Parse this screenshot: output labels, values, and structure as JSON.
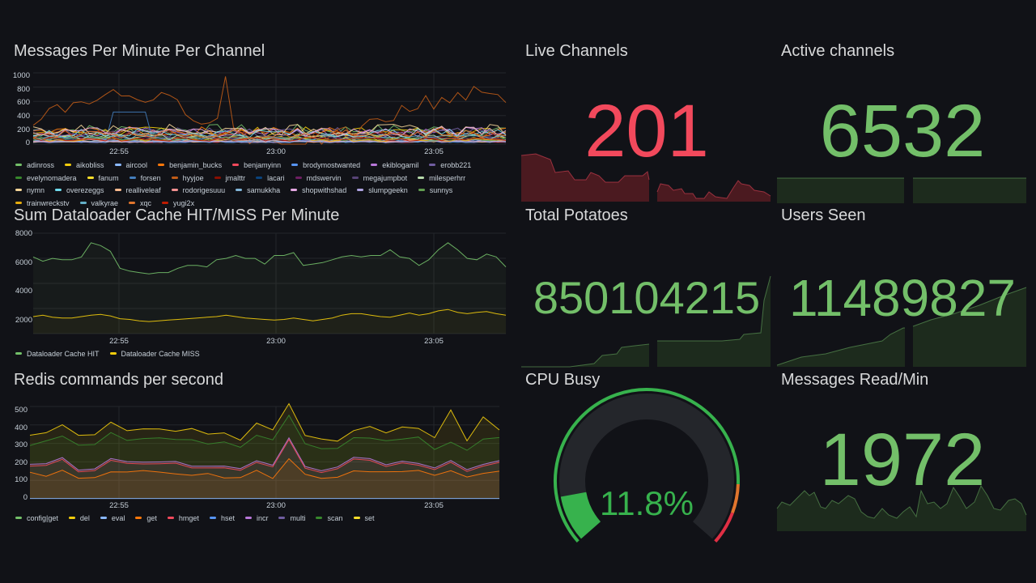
{
  "colors": {
    "green": "#73bf69",
    "red": "#f2495c",
    "bg": "#111217",
    "grid": "#2a2c31"
  },
  "panels": {
    "messages": {
      "title": "Messages Per Minute Per Channel",
      "y_ticks": [
        "1000",
        "800",
        "600",
        "400",
        "200",
        "0"
      ],
      "x_ticks": [
        "22:55",
        "23:00",
        "23:05"
      ],
      "legend": [
        {
          "name": "adinross",
          "color": "#73bf69"
        },
        {
          "name": "aikobliss",
          "color": "#f2cc0c"
        },
        {
          "name": "aircool",
          "color": "#8ab8ff"
        },
        {
          "name": "benjamin_bucks",
          "color": "#ff780a"
        },
        {
          "name": "benjamyinn",
          "color": "#f2495c"
        },
        {
          "name": "brodymostwanted",
          "color": "#5794f2"
        },
        {
          "name": "ekiblogamil",
          "color": "#b877d9"
        },
        {
          "name": "erobb221",
          "color": "#705da0"
        },
        {
          "name": "evelynomadera",
          "color": "#37872d"
        },
        {
          "name": "fanum",
          "color": "#fade2a"
        },
        {
          "name": "forsen",
          "color": "#447ebc"
        },
        {
          "name": "hyyjoe",
          "color": "#c15c17"
        },
        {
          "name": "jmalttr",
          "color": "#890f02"
        },
        {
          "name": "lacari",
          "color": "#0a437c"
        },
        {
          "name": "mdswervin",
          "color": "#6d1f62"
        },
        {
          "name": "megajumpbot",
          "color": "#584477"
        },
        {
          "name": "milesperhrr",
          "color": "#b7dbab"
        },
        {
          "name": "nymn",
          "color": "#f4d598"
        },
        {
          "name": "overezeggs",
          "color": "#70dbed"
        },
        {
          "name": "realliveleaf",
          "color": "#f9ba8f"
        },
        {
          "name": "rodorigesuuu",
          "color": "#f29191"
        },
        {
          "name": "samukkha",
          "color": "#82b5d8"
        },
        {
          "name": "shopwithshad",
          "color": "#e5a8e2"
        },
        {
          "name": "slumpgeekn",
          "color": "#aea2e0"
        },
        {
          "name": "sunnys",
          "color": "#629e51"
        },
        {
          "name": "trainwreckstv",
          "color": "#e5ac0e"
        },
        {
          "name": "valkyrae",
          "color": "#64b0c8"
        },
        {
          "name": "xqc",
          "color": "#e0752d"
        },
        {
          "name": "yugi2x",
          "color": "#bf1b00"
        }
      ]
    },
    "dataloader": {
      "title": "Sum Dataloader Cache HIT/MISS Per Minute",
      "y_ticks": [
        "8000",
        "6000",
        "4000",
        "2000"
      ],
      "x_ticks": [
        "22:55",
        "23:00",
        "23:05"
      ],
      "legend": [
        {
          "name": "Dataloader Cache HIT",
          "color": "#73bf69"
        },
        {
          "name": "Dataloader Cache MISS",
          "color": "#f2cc0c"
        }
      ]
    },
    "redis": {
      "title": "Redis commands per second",
      "y_ticks": [
        "500",
        "400",
        "300",
        "200",
        "100",
        "0"
      ],
      "x_ticks": [
        "22:55",
        "23:00",
        "23:05"
      ],
      "legend": [
        {
          "name": "config|get",
          "color": "#73bf69"
        },
        {
          "name": "del",
          "color": "#f2cc0c"
        },
        {
          "name": "eval",
          "color": "#8ab8ff"
        },
        {
          "name": "get",
          "color": "#ff780a"
        },
        {
          "name": "hmget",
          "color": "#f2495c"
        },
        {
          "name": "hset",
          "color": "#5794f2"
        },
        {
          "name": "incr",
          "color": "#b877d9"
        },
        {
          "name": "multi",
          "color": "#705da0"
        },
        {
          "name": "scan",
          "color": "#37872d"
        },
        {
          "name": "set",
          "color": "#fade2a"
        }
      ]
    },
    "live_channels": {
      "title": "Live Channels",
      "value": "201",
      "color": "#f2495c"
    },
    "active_channels": {
      "title": "Active channels",
      "value": "6532",
      "color": "#73bf69"
    },
    "total_potatoes": {
      "title": "Total Potatoes",
      "value": "850104215",
      "color": "#73bf69"
    },
    "users_seen": {
      "title": "Users Seen",
      "value": "11489827",
      "color": "#73bf69"
    },
    "cpu_busy": {
      "title": "CPU Busy",
      "value": "11.8%",
      "percent": 11.8,
      "color": "#37b24d"
    },
    "messages_read": {
      "title": "Messages Read/Min",
      "value": "1972",
      "color": "#73bf69"
    }
  }
}
